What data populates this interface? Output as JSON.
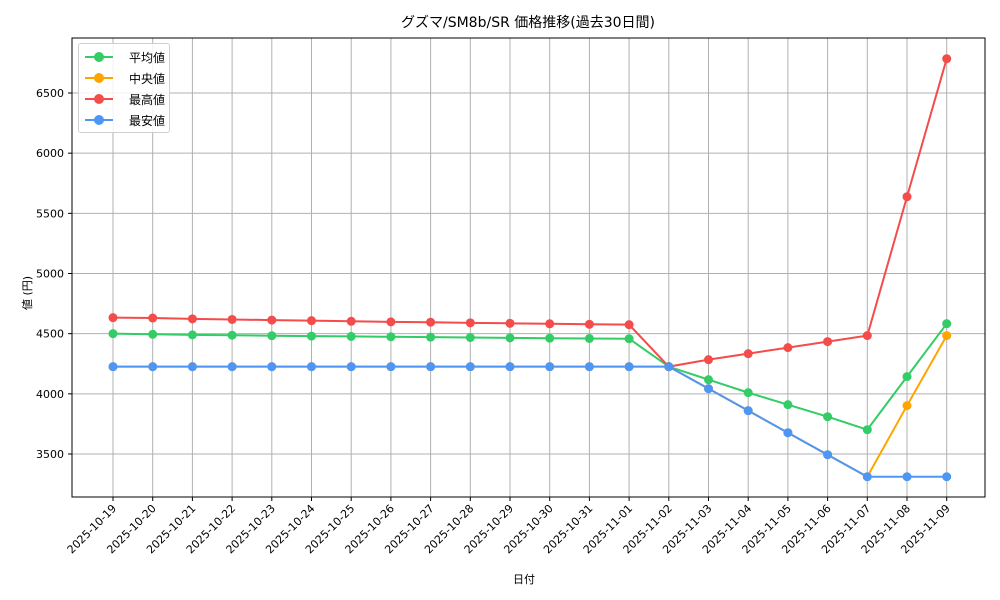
{
  "chart_data": {
    "type": "line",
    "title": "グズマ/SM8b/SR 価格推移(過去30日間)",
    "xlabel": "日付",
    "ylabel": "値 (円)",
    "ylim": [
      3150,
      6950
    ],
    "yticks": [
      3500,
      4000,
      4500,
      5000,
      5500,
      6000,
      6500
    ],
    "grid": true,
    "legend_position": "upper left",
    "x": [
      "2025-10-19",
      "2025-10-20",
      "2025-10-21",
      "2025-10-22",
      "2025-10-23",
      "2025-10-24",
      "2025-10-25",
      "2025-10-26",
      "2025-10-27",
      "2025-10-28",
      "2025-10-29",
      "2025-10-30",
      "2025-10-31",
      "2025-11-01",
      "2025-11-02",
      "2025-11-03",
      "2025-11-04",
      "2025-11-05",
      "2025-11-06",
      "2025-11-07",
      "2025-11-08",
      "2025-11-09"
    ],
    "series": [
      {
        "name": "平均値",
        "color": "#33cc66",
        "values": [
          4500,
          4495,
          4490,
          4487,
          4483,
          4480,
          4477,
          4474,
          4471,
          4468,
          4465,
          4462,
          4460,
          4458,
          4226,
          4118,
          4010,
          3910,
          3810,
          3702,
          4143,
          4583
        ]
      },
      {
        "name": "中央値",
        "color": "#ffa500",
        "values": [
          4226,
          4226,
          4226,
          4226,
          4226,
          4226,
          4226,
          4226,
          4226,
          4226,
          4226,
          4226,
          4226,
          4226,
          4226,
          4043,
          3860,
          3677,
          3494,
          3311,
          3902,
          4484
        ]
      },
      {
        "name": "最高値",
        "color": "#f44b4b",
        "values": [
          4633,
          4630,
          4623,
          4618,
          4613,
          4608,
          4603,
          4598,
          4595,
          4590,
          4586,
          4582,
          4578,
          4575,
          4226,
          4284,
          4334,
          4384,
          4434,
          4484,
          5638,
          6785
        ]
      },
      {
        "name": "最安値",
        "color": "#4d96f5",
        "values": [
          4226,
          4226,
          4226,
          4226,
          4226,
          4226,
          4226,
          4226,
          4226,
          4226,
          4226,
          4226,
          4226,
          4226,
          4226,
          4043,
          3860,
          3677,
          3494,
          3311,
          3311,
          3311
        ]
      }
    ]
  }
}
